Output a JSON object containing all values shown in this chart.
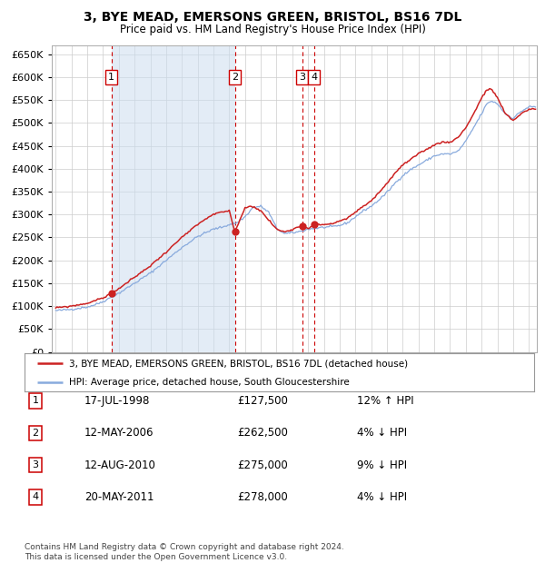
{
  "title": "3, BYE MEAD, EMERSONS GREEN, BRISTOL, BS16 7DL",
  "subtitle": "Price paid vs. HM Land Registry's House Price Index (HPI)",
  "ylim": [
    0,
    670000
  ],
  "yticks": [
    0,
    50000,
    100000,
    150000,
    200000,
    250000,
    300000,
    350000,
    400000,
    450000,
    500000,
    550000,
    600000,
    650000
  ],
  "xlim_start": 1994.75,
  "xlim_end": 2025.5,
  "background_color": "#ffffff",
  "grid_color": "#cccccc",
  "hpi_line_color": "#88aadd",
  "price_line_color": "#cc2222",
  "shade_color": "#ccddf0",
  "dashed_line_color": "#cc0000",
  "marker_color": "#cc2222",
  "purchases": [
    {
      "label": "1",
      "date_dec": 1998.54,
      "price": 127500
    },
    {
      "label": "2",
      "date_dec": 2006.36,
      "price": 262500
    },
    {
      "label": "3",
      "date_dec": 2010.62,
      "price": 275000
    },
    {
      "label": "4",
      "date_dec": 2011.38,
      "price": 278000
    }
  ],
  "legend_line1": "3, BYE MEAD, EMERSONS GREEN, BRISTOL, BS16 7DL (detached house)",
  "legend_line2": "HPI: Average price, detached house, South Gloucestershire",
  "footer1": "Contains HM Land Registry data © Crown copyright and database right 2024.",
  "footer2": "This data is licensed under the Open Government Licence v3.0.",
  "table_rows": [
    [
      "1",
      "17-JUL-1998",
      "£127,500",
      "12% ↑ HPI"
    ],
    [
      "2",
      "12-MAY-2006",
      "£262,500",
      "4% ↓ HPI"
    ],
    [
      "3",
      "12-AUG-2010",
      "£275,000",
      "9% ↓ HPI"
    ],
    [
      "4",
      "20-MAY-2011",
      "£278,000",
      "4% ↓ HPI"
    ]
  ],
  "hpi_key_years": [
    1995.0,
    1996.0,
    1997.0,
    1997.5,
    1998.0,
    1999.0,
    2000.0,
    2001.0,
    2002.0,
    2003.0,
    2004.0,
    2004.5,
    2005.0,
    2005.5,
    2006.0,
    2006.5,
    2007.0,
    2007.5,
    2008.0,
    2008.5,
    2009.0,
    2009.5,
    2010.0,
    2010.5,
    2011.0,
    2011.5,
    2012.0,
    2012.5,
    2013.0,
    2013.5,
    2014.0,
    2014.5,
    2015.0,
    2015.5,
    2016.0,
    2016.5,
    2017.0,
    2017.5,
    2018.0,
    2018.5,
    2019.0,
    2019.5,
    2020.0,
    2020.5,
    2021.0,
    2021.5,
    2022.0,
    2022.3,
    2022.6,
    2023.0,
    2023.5,
    2024.0,
    2024.5,
    2025.0
  ],
  "hpi_key_vals": [
    90000,
    93000,
    98000,
    103000,
    110000,
    128000,
    150000,
    172000,
    200000,
    228000,
    252000,
    260000,
    268000,
    272000,
    278000,
    282000,
    295000,
    315000,
    318000,
    305000,
    270000,
    258000,
    260000,
    263000,
    268000,
    270000,
    272000,
    273000,
    276000,
    282000,
    295000,
    308000,
    318000,
    332000,
    348000,
    368000,
    385000,
    398000,
    408000,
    418000,
    428000,
    432000,
    432000,
    438000,
    460000,
    490000,
    520000,
    540000,
    548000,
    542000,
    520000,
    510000,
    525000,
    535000
  ],
  "price_key_years": [
    1995.0,
    1996.0,
    1997.0,
    1997.5,
    1998.0,
    1998.54,
    1999.0,
    2000.0,
    2001.0,
    2002.0,
    2003.0,
    2004.0,
    2004.5,
    2005.0,
    2005.5,
    2006.0,
    2006.36,
    2007.0,
    2007.5,
    2008.0,
    2008.5,
    2009.0,
    2009.5,
    2010.0,
    2010.62,
    2011.0,
    2011.38,
    2011.8,
    2012.0,
    2012.5,
    2013.0,
    2013.5,
    2014.0,
    2014.5,
    2015.0,
    2015.5,
    2016.0,
    2016.5,
    2017.0,
    2017.5,
    2018.0,
    2018.5,
    2019.0,
    2019.5,
    2020.0,
    2020.5,
    2021.0,
    2021.5,
    2022.0,
    2022.3,
    2022.6,
    2023.0,
    2023.5,
    2024.0,
    2024.5,
    2025.0
  ],
  "price_key_vals": [
    96000,
    100000,
    106000,
    112000,
    118000,
    127500,
    138000,
    163000,
    188000,
    218000,
    250000,
    278000,
    290000,
    300000,
    305000,
    308000,
    262500,
    315000,
    318000,
    308000,
    288000,
    268000,
    262000,
    268000,
    275000,
    270000,
    278000,
    278000,
    278000,
    280000,
    285000,
    292000,
    305000,
    318000,
    330000,
    348000,
    368000,
    390000,
    408000,
    420000,
    432000,
    442000,
    452000,
    458000,
    458000,
    468000,
    490000,
    520000,
    555000,
    570000,
    575000,
    555000,
    520000,
    505000,
    520000,
    530000
  ]
}
